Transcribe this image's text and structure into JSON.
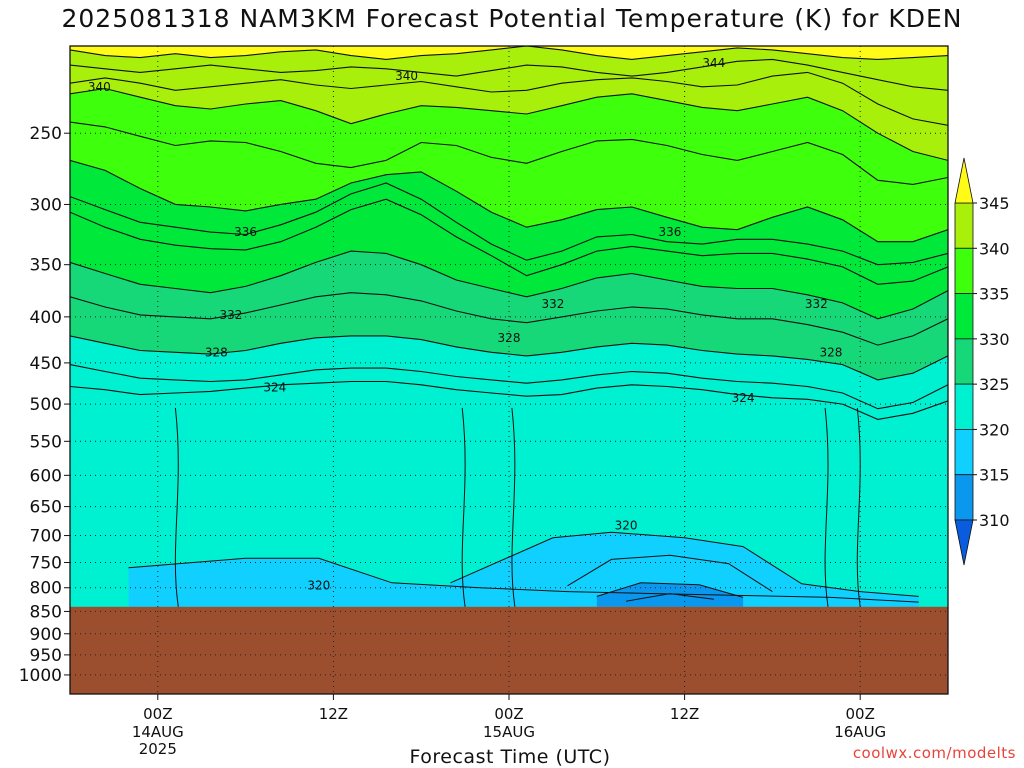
{
  "title": "2025081318 NAM3KM Forecast Potential Temperature (K) for KDEN",
  "credit": "coolwx.com/modelts",
  "colors": {
    "ground": "#9c4f2e",
    "bands": [
      "#0a5cde",
      "#0a98ef",
      "#0fd0ff",
      "#00f0d2",
      "#17d878",
      "#00e83a",
      "#3eff0c",
      "#a8f00c",
      "#d6f51c",
      "#fffb16"
    ]
  },
  "chart_data": {
    "type": "heatmap",
    "title": "2025081318 NAM3KM Forecast Potential Temperature (K) for KDEN",
    "xlabel": "Forecast Time (UTC)",
    "ylabel": "",
    "x_ticks": [
      {
        "label": "00Z",
        "sub": [
          "14AUG",
          "2025"
        ],
        "hour": 6
      },
      {
        "label": "12Z",
        "sub": [],
        "hour": 18
      },
      {
        "label": "00Z",
        "sub": [
          "15AUG"
        ],
        "hour": 30
      },
      {
        "label": "12Z",
        "sub": [],
        "hour": 42
      },
      {
        "label": "00Z",
        "sub": [
          "16AUG"
        ],
        "hour": 54
      }
    ],
    "xlim_hours": [
      0,
      60
    ],
    "y_ticks": [
      "250",
      "300",
      "350",
      "400",
      "450",
      "500",
      "550",
      "600",
      "650",
      "700",
      "750",
      "800",
      "850",
      "900",
      "950",
      "1000"
    ],
    "ylim_hpa": [
      200,
      1050
    ],
    "log_y": true,
    "ground_level_hpa": 840,
    "grid": true,
    "colorbar": {
      "labels": [
        "345",
        "340",
        "335",
        "330",
        "325",
        "320",
        "315",
        "310"
      ],
      "levels": [
        310,
        315,
        320,
        325,
        330,
        335,
        340,
        345
      ],
      "extend": "both"
    },
    "contour_labels": [
      {
        "text": "344",
        "hour": 44,
        "p": 209
      },
      {
        "text": "340",
        "hour": 2,
        "p": 222
      },
      {
        "text": "340",
        "hour": 23,
        "p": 216
      },
      {
        "text": "336",
        "hour": 12,
        "p": 322
      },
      {
        "text": "336",
        "hour": 41,
        "p": 322
      },
      {
        "text": "332",
        "hour": 11,
        "p": 398
      },
      {
        "text": "332",
        "hour": 33,
        "p": 387
      },
      {
        "text": "332",
        "hour": 51,
        "p": 387
      },
      {
        "text": "328",
        "hour": 10,
        "p": 438
      },
      {
        "text": "328",
        "hour": 30,
        "p": 422
      },
      {
        "text": "328",
        "hour": 52,
        "p": 438
      },
      {
        "text": "324",
        "hour": 14,
        "p": 479
      },
      {
        "text": "324",
        "hour": 46,
        "p": 492
      },
      {
        "text": "320",
        "hour": 17,
        "p": 795
      },
      {
        "text": "320",
        "hour": 38,
        "p": 682
      }
    ],
    "isentropes": [
      {
        "theta": 346,
        "p": [
          202,
          205,
          206,
          204,
          206,
          205,
          203,
          202,
          205,
          207,
          205,
          204,
          202,
          200,
          202,
          205,
          207,
          205,
          203,
          201,
          202,
          204,
          206,
          207,
          206,
          205
        ]
      },
      {
        "theta": 344,
        "p": [
          210,
          212,
          214,
          212,
          210,
          212,
          214,
          213,
          211,
          212,
          214,
          216,
          213,
          210,
          211,
          214,
          216,
          214,
          211,
          208,
          207,
          210,
          214,
          218,
          222,
          224
        ]
      },
      {
        "theta": 342,
        "p": [
          220,
          217,
          220,
          224,
          222,
          220,
          218,
          221,
          223,
          221,
          219,
          222,
          225,
          224,
          220,
          218,
          217,
          219,
          222,
          221,
          216,
          214,
          220,
          232,
          241,
          245
        ]
      },
      {
        "theta": 340,
        "p": [
          226,
          223,
          228,
          233,
          235,
          232,
          230,
          236,
          244,
          238,
          233,
          234,
          236,
          238,
          233,
          228,
          226,
          230,
          234,
          236,
          232,
          228,
          236,
          250,
          262,
          268
        ]
      },
      {
        "theta": 338,
        "p": [
          243,
          246,
          252,
          258,
          255,
          256,
          262,
          270,
          273,
          268,
          256,
          258,
          266,
          270,
          262,
          255,
          254,
          258,
          264,
          268,
          262,
          256,
          264,
          282,
          285,
          280
        ]
      },
      {
        "theta": 336,
        "p": [
          268,
          275,
          288,
          300,
          302,
          305,
          300,
          296,
          284,
          278,
          276,
          290,
          306,
          318,
          312,
          304,
          302,
          310,
          318,
          320,
          310,
          302,
          312,
          330,
          330,
          320
        ]
      },
      {
        "theta": 335,
        "p": [
          294,
          304,
          314,
          318,
          322,
          324,
          316,
          306,
          292,
          284,
          296,
          314,
          332,
          346,
          338,
          326,
          324,
          330,
          332,
          328,
          328,
          332,
          338,
          350,
          348,
          340
        ]
      },
      {
        "theta": 334,
        "p": [
          306,
          318,
          328,
          333,
          336,
          337,
          330,
          318,
          304,
          296,
          308,
          326,
          342,
          360,
          350,
          338,
          334,
          338,
          342,
          340,
          340,
          345,
          352,
          368,
          365,
          352
        ]
      },
      {
        "theta": 332,
        "p": [
          348,
          358,
          368,
          372,
          376,
          370,
          360,
          348,
          338,
          340,
          350,
          364,
          372,
          380,
          372,
          362,
          358,
          364,
          370,
          372,
          372,
          378,
          386,
          402,
          392,
          374
        ]
      },
      {
        "theta": 330,
        "p": [
          380,
          390,
          398,
          400,
          402,
          396,
          388,
          380,
          376,
          378,
          384,
          394,
          402,
          406,
          400,
          394,
          390,
          392,
          398,
          402,
          402,
          408,
          416,
          430,
          420,
          402
        ]
      },
      {
        "theta": 328,
        "p": [
          420,
          428,
          436,
          438,
          440,
          436,
          428,
          422,
          420,
          420,
          424,
          432,
          438,
          442,
          438,
          432,
          428,
          430,
          436,
          440,
          442,
          446,
          452,
          470,
          462,
          442
        ]
      },
      {
        "theta": 326,
        "p": [
          452,
          460,
          468,
          470,
          472,
          470,
          464,
          458,
          456,
          456,
          460,
          466,
          470,
          474,
          470,
          464,
          460,
          462,
          468,
          472,
          474,
          478,
          486,
          506,
          498,
          476
        ]
      },
      {
        "theta": 325,
        "p": [
          478,
          482,
          488,
          486,
          484,
          480,
          476,
          474,
          472,
          472,
          476,
          482,
          486,
          490,
          488,
          480,
          476,
          478,
          482,
          488,
          492,
          494,
          500,
          520,
          512,
          496
        ]
      }
    ],
    "cold_pools": [
      {
        "theta": 320,
        "points": [
          [
            4,
            760
          ],
          [
            12,
            742
          ],
          [
            17,
            742
          ],
          [
            22,
            790
          ],
          [
            28,
            800
          ],
          [
            34,
            808
          ],
          [
            40,
            812
          ],
          [
            46,
            816
          ],
          [
            52,
            820
          ],
          [
            58,
            830
          ]
        ]
      },
      {
        "theta": 318,
        "points": [
          [
            26,
            790
          ],
          [
            33,
            704
          ],
          [
            37,
            694
          ],
          [
            42,
            704
          ],
          [
            46,
            720
          ],
          [
            50,
            792
          ],
          [
            54,
            808
          ],
          [
            58,
            818
          ]
        ]
      },
      {
        "theta": 316,
        "points": [
          [
            34,
            796
          ],
          [
            37,
            744
          ],
          [
            41,
            736
          ],
          [
            45,
            752
          ],
          [
            48,
            808
          ]
        ]
      },
      {
        "theta": 314,
        "points": [
          [
            36,
            818
          ],
          [
            39,
            790
          ],
          [
            43,
            794
          ],
          [
            46,
            820
          ]
        ]
      },
      {
        "theta": 312,
        "points": [
          [
            38,
            828
          ],
          [
            41,
            812
          ],
          [
            44,
            824
          ]
        ]
      }
    ],
    "vertical_lines_hour": [
      7.2,
      26.8,
      30.2,
      51.6,
      53.8
    ]
  }
}
